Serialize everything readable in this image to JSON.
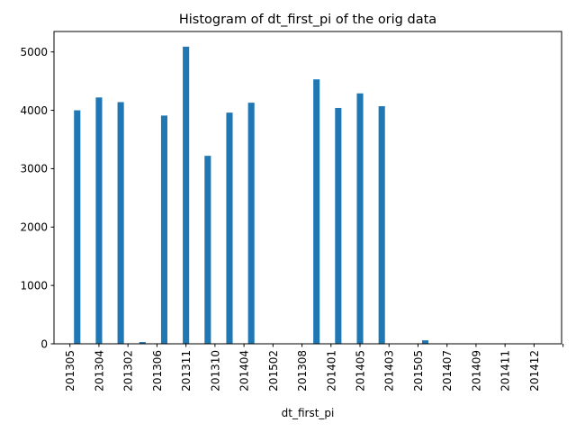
{
  "chart_data": {
    "type": "bar",
    "title": "Histogram of dt_first_pi of the orig data",
    "xlabel": "dt_first_pi",
    "ylabel": "",
    "ylim": [
      0,
      5350
    ],
    "yticks": [
      0,
      1000,
      2000,
      3000,
      4000,
      5000
    ],
    "xlim": [
      201249.5,
      201424.5
    ],
    "xticks": [
      "201305",
      "201304",
      "201302",
      "201306",
      "201311",
      "201310",
      "201404",
      "201502",
      "201308",
      "201401",
      "201405",
      "201403",
      "201505",
      "201407",
      "201409",
      "201411",
      "201412",
      ""
    ],
    "bar_width": 2.2,
    "color": "#1f77b4",
    "grid": false,
    "legend": "none",
    "x": [
      201257.5,
      201265,
      201272.5,
      201280,
      201287.5,
      201295,
      201302.5,
      201310,
      201317.5,
      201325,
      201332.5,
      201340,
      201347.5,
      201355,
      201362.5,
      201370,
      201377.5,
      201385,
      201392.5,
      201400,
      201407.5,
      201415
    ],
    "values": [
      4000,
      4220,
      4140,
      30,
      3910,
      5090,
      3220,
      3960,
      4130,
      0,
      0,
      4530,
      4040,
      4290,
      4070,
      0,
      60,
      0,
      0,
      0,
      0,
      0
    ]
  }
}
